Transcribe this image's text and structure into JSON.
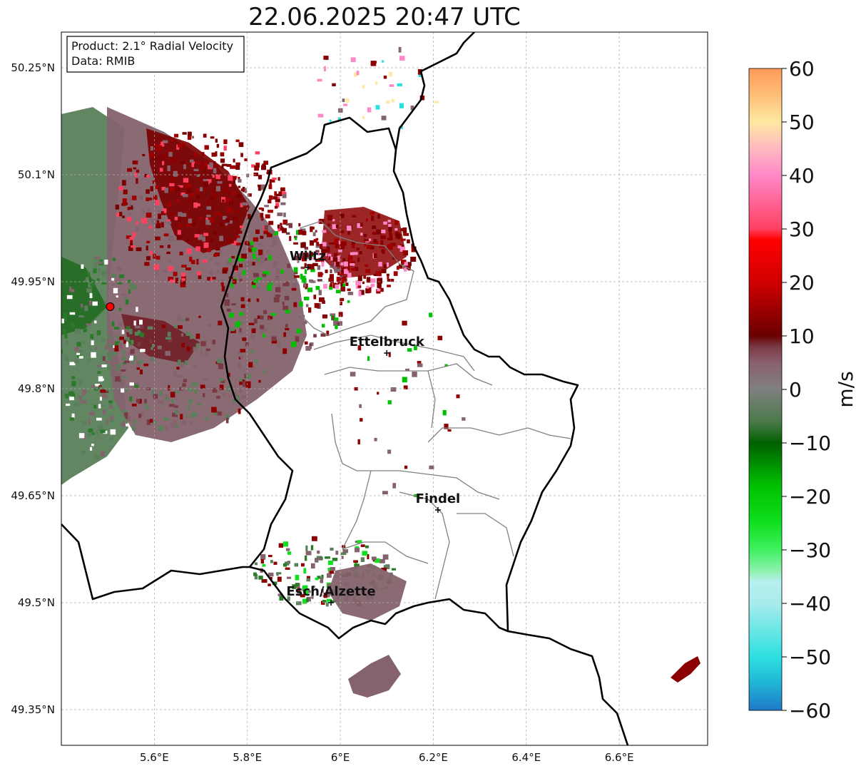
{
  "title": "22.06.2025 20:47 UTC",
  "info_box": {
    "product_line": "Product: 2.1° Radial Velocity",
    "data_line": "Data: RMIB"
  },
  "lat_ticks": [
    "50.25°N",
    "50.1°N",
    "49.95°N",
    "49.8°N",
    "49.65°N",
    "49.5°N",
    "49.35°N"
  ],
  "lon_ticks": [
    "5.6°E",
    "5.8°E",
    "6°E",
    "6.2°E",
    "6.4°E",
    "6.6°E"
  ],
  "cities": [
    {
      "name": "Wiltz",
      "lon": 5.93,
      "lat": 49.97
    },
    {
      "name": "Ettelbruck",
      "lon": 6.1,
      "lat": 49.85
    },
    {
      "name": "Findel",
      "lon": 6.21,
      "lat": 49.63
    },
    {
      "name": "Esch/Alzette",
      "lon": 5.98,
      "lat": 49.5
    }
  ],
  "radar_site": {
    "lon": 5.505,
    "lat": 49.915
  },
  "map_extent": {
    "lon_min": 5.4,
    "lon_max": 6.79,
    "lat_min": 49.3,
    "lat_max": 50.3
  },
  "colorbar": {
    "label": "m/s",
    "vmin": -60,
    "vmax": 60,
    "ticks": [
      "60",
      "50",
      "40",
      "30",
      "20",
      "10",
      "0",
      "−10",
      "−20",
      "−30",
      "−40",
      "−50",
      "−60"
    ],
    "stops": [
      {
        "v": -60,
        "c": "#1f78c8"
      },
      {
        "v": -55,
        "c": "#20b4d6"
      },
      {
        "v": -50,
        "c": "#2de0e0"
      },
      {
        "v": -40,
        "c": "#a8ecec"
      },
      {
        "v": -36,
        "c": "#b8f0f0"
      },
      {
        "v": -34,
        "c": "#90f0b0"
      },
      {
        "v": -30,
        "c": "#40f060"
      },
      {
        "v": -25,
        "c": "#10e020"
      },
      {
        "v": -18,
        "c": "#00c000"
      },
      {
        "v": -10,
        "c": "#006000"
      },
      {
        "v": -6,
        "c": "#4a7a4a"
      },
      {
        "v": 0,
        "c": "#808080"
      },
      {
        "v": 5,
        "c": "#8a6070"
      },
      {
        "v": 8,
        "c": "#7a3a44"
      },
      {
        "v": 10,
        "c": "#6a0000"
      },
      {
        "v": 20,
        "c": "#d00000"
      },
      {
        "v": 28,
        "c": "#ff0000"
      },
      {
        "v": 30,
        "c": "#ff4060"
      },
      {
        "v": 40,
        "c": "#ff88c8"
      },
      {
        "v": 45,
        "c": "#ffb8c0"
      },
      {
        "v": 50,
        "c": "#ffe8a0"
      },
      {
        "v": 55,
        "c": "#ffbe78"
      },
      {
        "v": 60,
        "c": "#ff9c58"
      }
    ]
  },
  "colors": {
    "inbound_strong": "#2a7a2a",
    "inbound_weak": "#5a7f5a",
    "near_zero": "#84636d",
    "outbound_weak": "#7a3a44",
    "outbound_strong": "#8b0000",
    "radar_marker": "#ff0000"
  }
}
